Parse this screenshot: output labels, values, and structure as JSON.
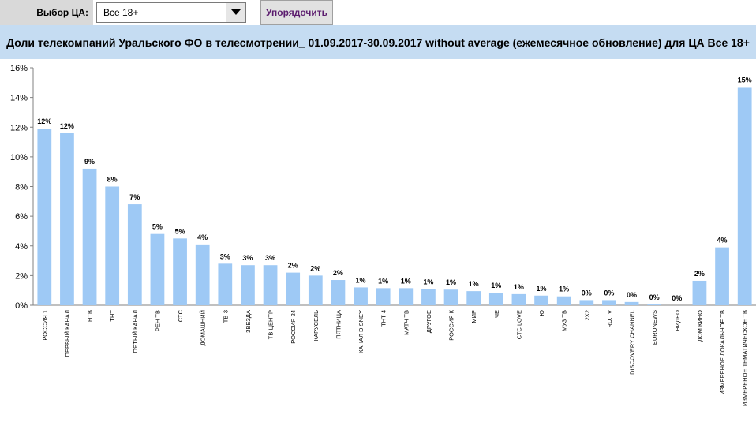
{
  "controls": {
    "audience_label": "Выбор ЦА:",
    "audience_selected": "Все 18+",
    "sort_button": "Упорядочить"
  },
  "colors": {
    "bar": "#9ec9f5",
    "title_band": "#c5dcf2",
    "axis": "#808080"
  },
  "chart_data": {
    "type": "bar",
    "title": "Доли телекомпаний Уральского ФО в телесмотрении_ 01.09.2017-30.09.2017 without average (ежемесячное обновление) для ЦА Все 18+",
    "xlabel": "",
    "ylabel": "",
    "ylim": [
      0,
      16
    ],
    "yticks": [
      "0%",
      "2%",
      "4%",
      "6%",
      "8%",
      "10%",
      "12%",
      "14%",
      "16%"
    ],
    "categories": [
      "РОССИЯ 1",
      "ПЕРВЫЙ КАНАЛ",
      "НТВ",
      "ТНТ",
      "ПЯТЫЙ КАНАЛ",
      "РЕН ТВ",
      "СТС",
      "ДОМАШНИЙ",
      "ТВ-3",
      "ЗВЕЗДА",
      "ТВ ЦЕНТР",
      "РОССИЯ 24",
      "КАРУСЕЛЬ",
      "ПЯТНИЦА",
      "КАНАЛ DISNEY",
      "ТНТ 4",
      "МАТЧ ТВ",
      "ДРУГОЕ",
      "РОССИЯ К",
      "МИР",
      "ЧЕ",
      "СТС LOVE",
      "Ю",
      "МУЗ ТВ",
      "2X2",
      "RU.TV",
      "DISCOVERY CHANNEL",
      "EURONEWS",
      "ВИДЕО",
      "ДОМ КИНО",
      "ИЗМЕРЕНОЕ ЛОКАЛЬНОЕ ТВ",
      "ИЗМЕРЕНОЕ ТЕМАТИЧЕСКОЕ ТВ"
    ],
    "values": [
      11.9,
      11.6,
      9.2,
      8.0,
      6.8,
      4.8,
      4.5,
      4.1,
      2.8,
      2.7,
      2.7,
      2.2,
      2.0,
      1.7,
      1.2,
      1.15,
      1.15,
      1.1,
      1.05,
      0.95,
      0.85,
      0.75,
      0.65,
      0.6,
      0.35,
      0.35,
      0.22,
      0.05,
      0.0,
      1.65,
      3.9,
      14.7
    ],
    "data_labels": [
      "12%",
      "12%",
      "9%",
      "8%",
      "7%",
      "5%",
      "5%",
      "4%",
      "3%",
      "3%",
      "3%",
      "2%",
      "2%",
      "2%",
      "1%",
      "1%",
      "1%",
      "1%",
      "1%",
      "1%",
      "1%",
      "1%",
      "1%",
      "1%",
      "0%",
      "0%",
      "0%",
      "0%",
      "0%",
      "2%",
      "4%",
      "15%"
    ],
    "grid": false,
    "legend": "none"
  }
}
